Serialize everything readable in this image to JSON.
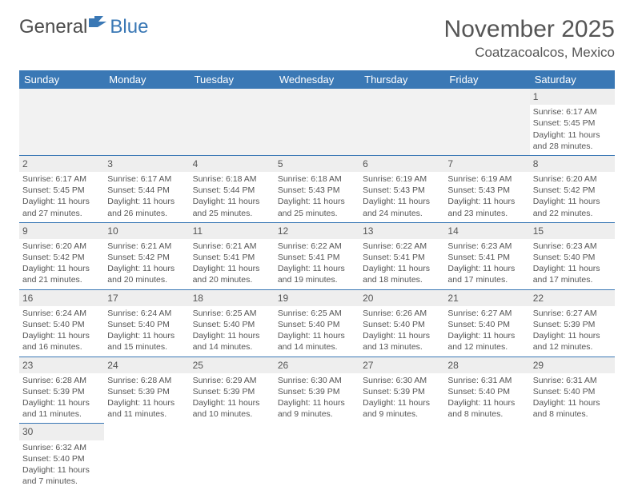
{
  "logo": {
    "text1": "General",
    "text2": "Blue"
  },
  "title": "November 2025",
  "location": "Coatzacoalcos, Mexico",
  "colors": {
    "header_bg": "#3a78b5",
    "header_text": "#ffffff",
    "border": "#3a78b5",
    "daynum_bg": "#eeeeee",
    "text": "#555555",
    "logo_gray": "#4c4c4c",
    "logo_blue": "#3a78b5",
    "background": "#ffffff"
  },
  "days_of_week": [
    "Sunday",
    "Monday",
    "Tuesday",
    "Wednesday",
    "Thursday",
    "Friday",
    "Saturday"
  ],
  "weeks": [
    [
      null,
      null,
      null,
      null,
      null,
      null,
      {
        "n": "1",
        "sr": "Sunrise: 6:17 AM",
        "ss": "Sunset: 5:45 PM",
        "dl": "Daylight: 11 hours and 28 minutes."
      }
    ],
    [
      {
        "n": "2",
        "sr": "Sunrise: 6:17 AM",
        "ss": "Sunset: 5:45 PM",
        "dl": "Daylight: 11 hours and 27 minutes."
      },
      {
        "n": "3",
        "sr": "Sunrise: 6:17 AM",
        "ss": "Sunset: 5:44 PM",
        "dl": "Daylight: 11 hours and 26 minutes."
      },
      {
        "n": "4",
        "sr": "Sunrise: 6:18 AM",
        "ss": "Sunset: 5:44 PM",
        "dl": "Daylight: 11 hours and 25 minutes."
      },
      {
        "n": "5",
        "sr": "Sunrise: 6:18 AM",
        "ss": "Sunset: 5:43 PM",
        "dl": "Daylight: 11 hours and 25 minutes."
      },
      {
        "n": "6",
        "sr": "Sunrise: 6:19 AM",
        "ss": "Sunset: 5:43 PM",
        "dl": "Daylight: 11 hours and 24 minutes."
      },
      {
        "n": "7",
        "sr": "Sunrise: 6:19 AM",
        "ss": "Sunset: 5:43 PM",
        "dl": "Daylight: 11 hours and 23 minutes."
      },
      {
        "n": "8",
        "sr": "Sunrise: 6:20 AM",
        "ss": "Sunset: 5:42 PM",
        "dl": "Daylight: 11 hours and 22 minutes."
      }
    ],
    [
      {
        "n": "9",
        "sr": "Sunrise: 6:20 AM",
        "ss": "Sunset: 5:42 PM",
        "dl": "Daylight: 11 hours and 21 minutes."
      },
      {
        "n": "10",
        "sr": "Sunrise: 6:21 AM",
        "ss": "Sunset: 5:42 PM",
        "dl": "Daylight: 11 hours and 20 minutes."
      },
      {
        "n": "11",
        "sr": "Sunrise: 6:21 AM",
        "ss": "Sunset: 5:41 PM",
        "dl": "Daylight: 11 hours and 20 minutes."
      },
      {
        "n": "12",
        "sr": "Sunrise: 6:22 AM",
        "ss": "Sunset: 5:41 PM",
        "dl": "Daylight: 11 hours and 19 minutes."
      },
      {
        "n": "13",
        "sr": "Sunrise: 6:22 AM",
        "ss": "Sunset: 5:41 PM",
        "dl": "Daylight: 11 hours and 18 minutes."
      },
      {
        "n": "14",
        "sr": "Sunrise: 6:23 AM",
        "ss": "Sunset: 5:41 PM",
        "dl": "Daylight: 11 hours and 17 minutes."
      },
      {
        "n": "15",
        "sr": "Sunrise: 6:23 AM",
        "ss": "Sunset: 5:40 PM",
        "dl": "Daylight: 11 hours and 17 minutes."
      }
    ],
    [
      {
        "n": "16",
        "sr": "Sunrise: 6:24 AM",
        "ss": "Sunset: 5:40 PM",
        "dl": "Daylight: 11 hours and 16 minutes."
      },
      {
        "n": "17",
        "sr": "Sunrise: 6:24 AM",
        "ss": "Sunset: 5:40 PM",
        "dl": "Daylight: 11 hours and 15 minutes."
      },
      {
        "n": "18",
        "sr": "Sunrise: 6:25 AM",
        "ss": "Sunset: 5:40 PM",
        "dl": "Daylight: 11 hours and 14 minutes."
      },
      {
        "n": "19",
        "sr": "Sunrise: 6:25 AM",
        "ss": "Sunset: 5:40 PM",
        "dl": "Daylight: 11 hours and 14 minutes."
      },
      {
        "n": "20",
        "sr": "Sunrise: 6:26 AM",
        "ss": "Sunset: 5:40 PM",
        "dl": "Daylight: 11 hours and 13 minutes."
      },
      {
        "n": "21",
        "sr": "Sunrise: 6:27 AM",
        "ss": "Sunset: 5:40 PM",
        "dl": "Daylight: 11 hours and 12 minutes."
      },
      {
        "n": "22",
        "sr": "Sunrise: 6:27 AM",
        "ss": "Sunset: 5:39 PM",
        "dl": "Daylight: 11 hours and 12 minutes."
      }
    ],
    [
      {
        "n": "23",
        "sr": "Sunrise: 6:28 AM",
        "ss": "Sunset: 5:39 PM",
        "dl": "Daylight: 11 hours and 11 minutes."
      },
      {
        "n": "24",
        "sr": "Sunrise: 6:28 AM",
        "ss": "Sunset: 5:39 PM",
        "dl": "Daylight: 11 hours and 11 minutes."
      },
      {
        "n": "25",
        "sr": "Sunrise: 6:29 AM",
        "ss": "Sunset: 5:39 PM",
        "dl": "Daylight: 11 hours and 10 minutes."
      },
      {
        "n": "26",
        "sr": "Sunrise: 6:30 AM",
        "ss": "Sunset: 5:39 PM",
        "dl": "Daylight: 11 hours and 9 minutes."
      },
      {
        "n": "27",
        "sr": "Sunrise: 6:30 AM",
        "ss": "Sunset: 5:39 PM",
        "dl": "Daylight: 11 hours and 9 minutes."
      },
      {
        "n": "28",
        "sr": "Sunrise: 6:31 AM",
        "ss": "Sunset: 5:40 PM",
        "dl": "Daylight: 11 hours and 8 minutes."
      },
      {
        "n": "29",
        "sr": "Sunrise: 6:31 AM",
        "ss": "Sunset: 5:40 PM",
        "dl": "Daylight: 11 hours and 8 minutes."
      }
    ],
    [
      {
        "n": "30",
        "sr": "Sunrise: 6:32 AM",
        "ss": "Sunset: 5:40 PM",
        "dl": "Daylight: 11 hours and 7 minutes."
      },
      null,
      null,
      null,
      null,
      null,
      null
    ]
  ]
}
